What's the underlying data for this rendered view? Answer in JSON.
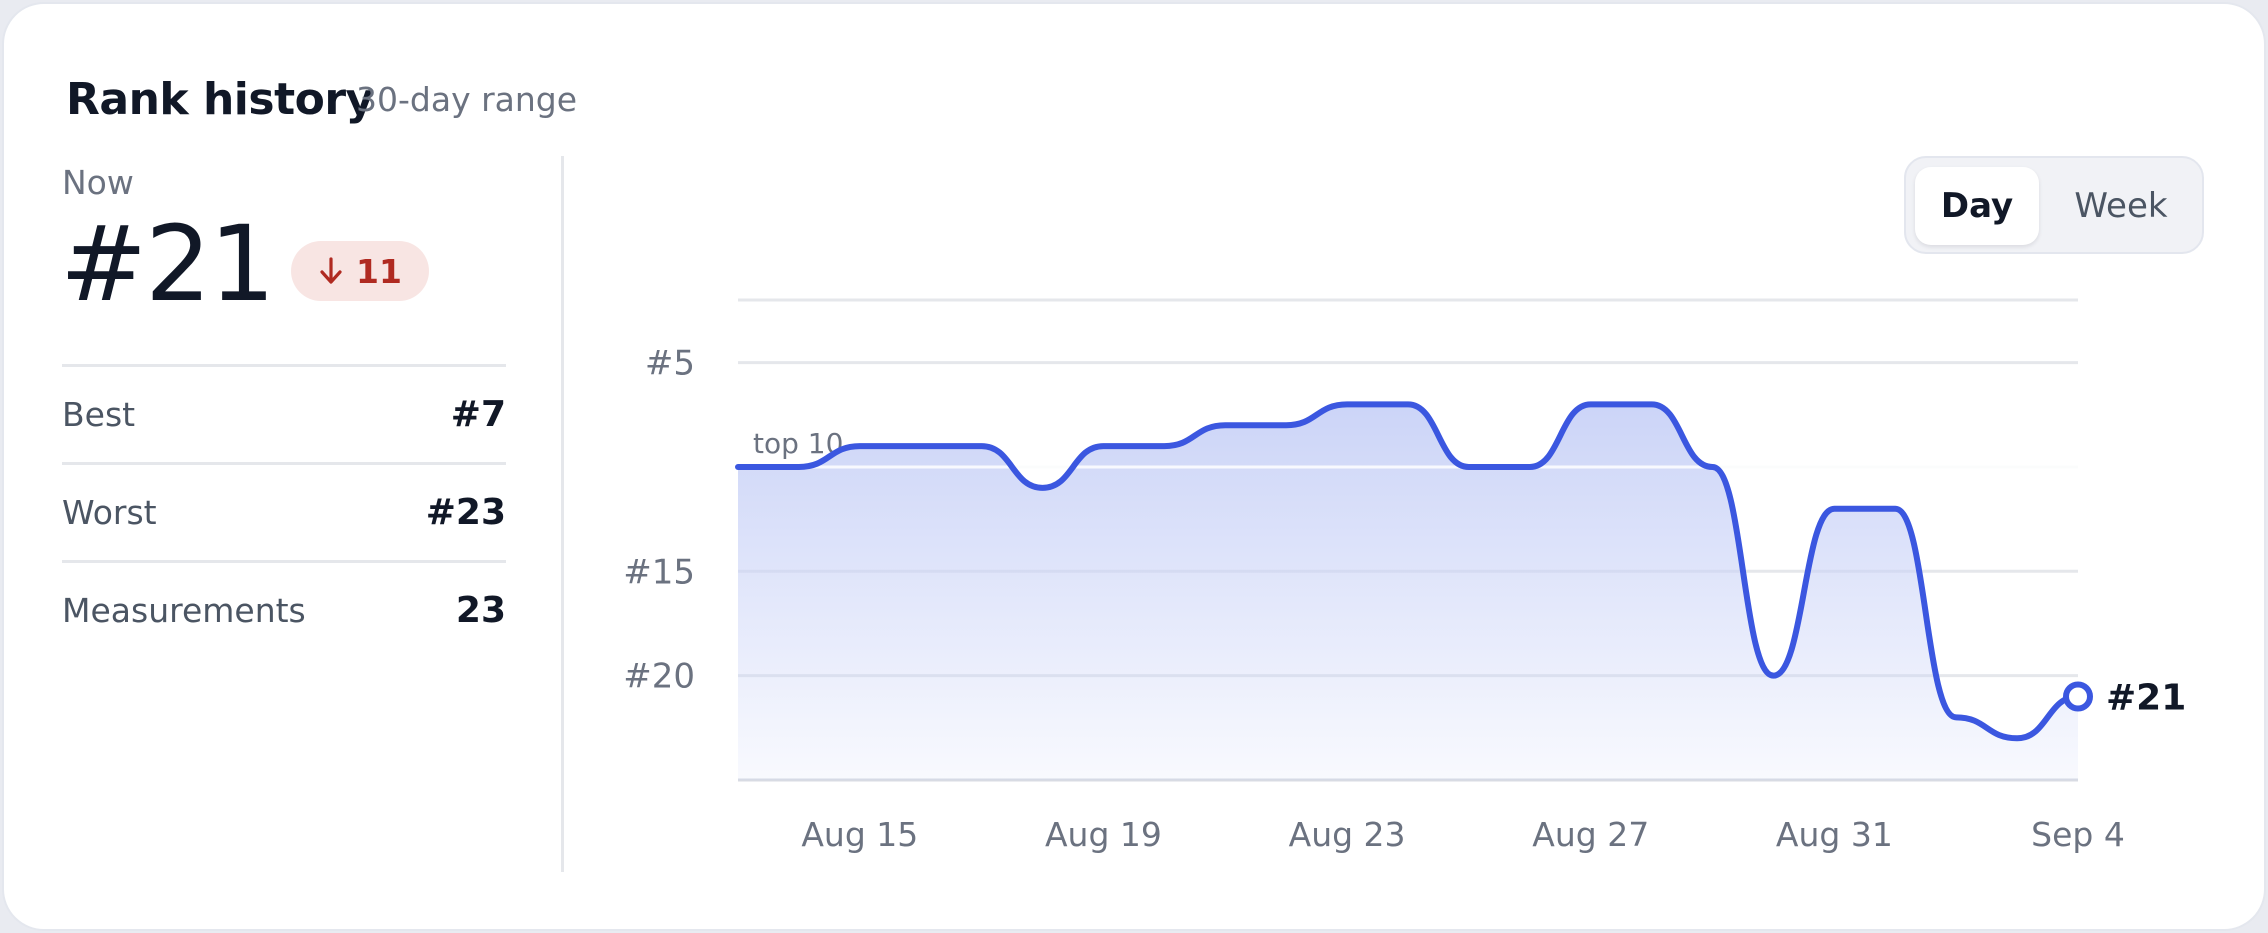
{
  "header": {
    "title": "Rank history",
    "subtitle": "30-day range"
  },
  "summary": {
    "now_label": "Now",
    "current_rank": "#21",
    "delta": {
      "direction": "down",
      "value": "11",
      "icon": "arrow-down-icon",
      "color": "#b02a21",
      "bg": "#f8e5e3"
    },
    "stats": [
      {
        "label": "Best",
        "value": "#7"
      },
      {
        "label": "Worst",
        "value": "#23"
      },
      {
        "label": "Measurements",
        "value": "23"
      }
    ]
  },
  "toggle": {
    "options": [
      "Day",
      "Week"
    ],
    "selected": "Day"
  },
  "colors": {
    "line": "#3b57e0",
    "accent_area": "#dfe4fb",
    "grid": "#e5e7eb"
  },
  "chart_data": {
    "type": "area",
    "y_inverted": true,
    "ylim": [
      2,
      25
    ],
    "yticks": [
      5,
      10,
      15,
      20
    ],
    "ytick_labels": [
      "#5",
      "",
      "#15",
      "#20"
    ],
    "xlim": [
      "Aug 13",
      "Sep 4"
    ],
    "xticks": [
      "Aug 15",
      "Aug 19",
      "Aug 23",
      "Aug 27",
      "Aug 31",
      "Sep 4"
    ],
    "xtick_dates": [
      "2024-08-15",
      "2024-08-19",
      "2024-08-23",
      "2024-08-27",
      "2024-08-31",
      "2024-09-04"
    ],
    "reference_line": {
      "value": 10,
      "label": "top 10"
    },
    "series": [
      {
        "dates": [
          "2024-08-13",
          "2024-08-14",
          "2024-08-15",
          "2024-08-16",
          "2024-08-17",
          "2024-08-18",
          "2024-08-19",
          "2024-08-20",
          "2024-08-21",
          "2024-08-22",
          "2024-08-23",
          "2024-08-24",
          "2024-08-25",
          "2024-08-26",
          "2024-08-27",
          "2024-08-28",
          "2024-08-29",
          "2024-08-30",
          "2024-08-31",
          "2024-09-01",
          "2024-09-02",
          "2024-09-03",
          "2024-09-04"
        ],
        "values": [
          10,
          10,
          9,
          9,
          9,
          11,
          9,
          9,
          8,
          8,
          7,
          7,
          10,
          10,
          7,
          7,
          10,
          20,
          12,
          12,
          22,
          23,
          21
        ]
      }
    ],
    "end_label": "#21",
    "grid": true
  }
}
